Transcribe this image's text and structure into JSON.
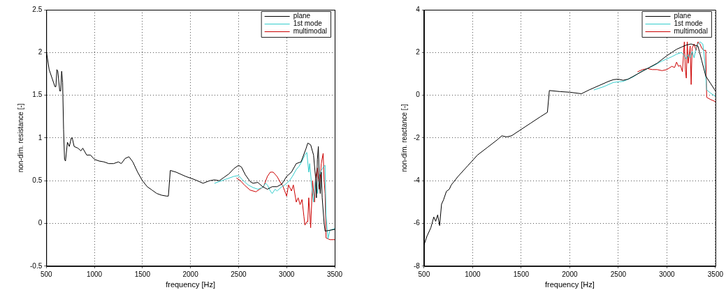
{
  "chart_data": [
    {
      "type": "line",
      "xlabel": "frequency [Hz]",
      "ylabel": "non-dim. resistance [-]",
      "xlim": [
        500,
        3500
      ],
      "ylim": [
        -0.5,
        2.5
      ],
      "xticks": [
        500,
        1000,
        1500,
        2000,
        2500,
        3000,
        3500
      ],
      "yticks": [
        -0.5,
        0,
        0.5,
        1,
        1.5,
        2,
        2.5
      ],
      "grid": true,
      "legend": "top right",
      "marker": "none",
      "series": [
        {
          "name": "plane",
          "color": "#000000",
          "x": [
            500,
            530,
            560,
            590,
            600,
            610,
            620,
            640,
            650,
            660,
            670,
            680,
            690,
            700,
            720,
            740,
            760,
            770,
            790,
            830,
            860,
            880,
            920,
            960,
            1000,
            1050,
            1100,
            1150,
            1200,
            1250,
            1280,
            1320,
            1360,
            1400,
            1450,
            1500,
            1550,
            1600,
            1650,
            1700,
            1750,
            1770,
            1790,
            1850,
            1950,
            2050,
            2130,
            2200,
            2250,
            2300,
            2350,
            2400,
            2450,
            2500,
            2530,
            2570,
            2620,
            2650,
            2700,
            2750,
            2800,
            2850,
            2900,
            2950,
            3000,
            3050,
            3100,
            3150,
            3200,
            3220,
            3250,
            3280,
            3300,
            3310,
            3320,
            3330,
            3340,
            3350,
            3360,
            3370,
            3390,
            3400,
            3450,
            3500
          ],
          "values": [
            2.02,
            1.8,
            1.7,
            1.6,
            1.6,
            1.8,
            1.78,
            1.55,
            1.55,
            1.78,
            1.65,
            1.1,
            0.75,
            0.73,
            0.95,
            0.9,
            1.0,
            1.0,
            0.9,
            0.88,
            0.85,
            0.88,
            0.8,
            0.8,
            0.75,
            0.73,
            0.72,
            0.7,
            0.7,
            0.72,
            0.7,
            0.76,
            0.78,
            0.72,
            0.6,
            0.5,
            0.43,
            0.39,
            0.35,
            0.33,
            0.32,
            0.32,
            0.62,
            0.6,
            0.55,
            0.51,
            0.47,
            0.5,
            0.51,
            0.5,
            0.54,
            0.58,
            0.64,
            0.68,
            0.66,
            0.57,
            0.49,
            0.47,
            0.48,
            0.43,
            0.4,
            0.43,
            0.43,
            0.46,
            0.55,
            0.6,
            0.7,
            0.72,
            0.87,
            0.94,
            0.92,
            0.8,
            0.55,
            0.3,
            0.75,
            0.9,
            0.5,
            0.35,
            0.6,
            0.3,
            0,
            -0.09,
            -0.08,
            -0.07
          ]
        },
        {
          "name": "1st mode",
          "color": "#33cccc",
          "x": [
            2250,
            2350,
            2450,
            2500,
            2550,
            2600,
            2650,
            2700,
            2750,
            2780,
            2800,
            2830,
            2850,
            2880,
            2900,
            2950,
            2980,
            3000,
            3030,
            3060,
            3100,
            3130,
            3160,
            3190,
            3210,
            3230,
            3240,
            3260,
            3280,
            3300,
            3320,
            3340,
            3360,
            3390,
            3400,
            3410,
            3430,
            3450,
            3500
          ],
          "values": [
            0.47,
            0.51,
            0.55,
            0.56,
            0.5,
            0.45,
            0.42,
            0.4,
            0.42,
            0.47,
            0.45,
            0.38,
            0.35,
            0.4,
            0.38,
            0.43,
            0.45,
            0.47,
            0.5,
            0.55,
            0.63,
            0.67,
            0.73,
            0.8,
            0.83,
            0.6,
            0.7,
            0.45,
            0.25,
            0.5,
            0.35,
            0.55,
            0.62,
            0.67,
            0.68,
            0.1,
            -0.18,
            -0.08,
            -0.06
          ]
        },
        {
          "name": "multimodal",
          "color": "#cc0000",
          "x": [
            2480,
            2520,
            2560,
            2620,
            2680,
            2720,
            2760,
            2800,
            2830,
            2860,
            2900,
            2940,
            2960,
            2980,
            3000,
            3020,
            3050,
            3070,
            3100,
            3120,
            3140,
            3160,
            3180,
            3190,
            3210,
            3220,
            3230,
            3250,
            3270,
            3290,
            3300,
            3320,
            3340,
            3360,
            3380,
            3390,
            3400,
            3410,
            3450,
            3500
          ],
          "values": [
            0.53,
            0.5,
            0.45,
            0.39,
            0.37,
            0.4,
            0.43,
            0.55,
            0.6,
            0.6,
            0.55,
            0.47,
            0.44,
            0.38,
            0.32,
            0.45,
            0.38,
            0.45,
            0.25,
            0.3,
            0.22,
            0.28,
            0.08,
            -0.02,
            0.02,
            0.02,
            0.3,
            -0.05,
            0.5,
            0.25,
            0.52,
            0.65,
            0.4,
            0.7,
            0.82,
            0.5,
            0.35,
            -0.17,
            -0.19,
            -0.19
          ]
        }
      ]
    },
    {
      "type": "line",
      "xlabel": "frequency [Hz]",
      "ylabel": "non-dim. reactance [-]",
      "xlim": [
        500,
        3500
      ],
      "ylim": [
        -8,
        4
      ],
      "xticks": [
        500,
        1000,
        1500,
        2000,
        2500,
        3000,
        3500
      ],
      "yticks": [
        -8,
        -6,
        -4,
        -2,
        0,
        2,
        4
      ],
      "grid": true,
      "legend": "top right",
      "marker": "none",
      "series": [
        {
          "name": "plane",
          "color": "#000000",
          "x": [
            500,
            530,
            570,
            600,
            620,
            640,
            660,
            680,
            700,
            730,
            760,
            780,
            850,
            950,
            1050,
            1150,
            1250,
            1300,
            1350,
            1400,
            1500,
            1600,
            1700,
            1770,
            1790,
            1900,
            2000,
            2120,
            2200,
            2300,
            2400,
            2450,
            2500,
            2550,
            2600,
            2700,
            2800,
            2900,
            3000,
            3050,
            3100,
            3150,
            3200,
            3250,
            3280,
            3320,
            3360,
            3400,
            3450,
            3500
          ],
          "values": [
            -7,
            -6.6,
            -6.2,
            -5.7,
            -5.9,
            -5.6,
            -6.1,
            -5.1,
            -4.9,
            -4.5,
            -4.4,
            -4.2,
            -3.8,
            -3.3,
            -2.8,
            -2.45,
            -2.1,
            -1.9,
            -1.95,
            -1.9,
            -1.6,
            -1.3,
            -1.0,
            -0.8,
            0.22,
            0.17,
            0.14,
            0.07,
            0.25,
            0.45,
            0.65,
            0.73,
            0.75,
            0.7,
            0.75,
            1.0,
            1.25,
            1.5,
            1.85,
            2.0,
            2.15,
            2.25,
            2.35,
            2.4,
            2.35,
            2.3,
            1.6,
            0.9,
            0.55,
            0.2
          ]
        },
        {
          "name": "1st mode",
          "color": "#33cccc",
          "x": [
            2250,
            2350,
            2450,
            2550,
            2650,
            2750,
            2850,
            2950,
            3050,
            3100,
            3150,
            3180,
            3200,
            3220,
            3240,
            3260,
            3280,
            3300,
            3320,
            3340,
            3370,
            3380,
            3390,
            3410,
            3450,
            3500
          ],
          "values": [
            0.25,
            0.4,
            0.6,
            0.65,
            0.85,
            1.15,
            1.35,
            1.6,
            1.8,
            1.92,
            2.0,
            1.85,
            1.7,
            1.9,
            1.75,
            2.05,
            1.75,
            2.2,
            2.4,
            2.5,
            2.4,
            2.0,
            1.6,
            0.25,
            0.1,
            -0.05
          ]
        },
        {
          "name": "multimodal",
          "color": "#cc0000",
          "x": [
            2700,
            2750,
            2800,
            2850,
            2900,
            2950,
            3000,
            3050,
            3080,
            3100,
            3120,
            3140,
            3160,
            3180,
            3190,
            3200,
            3210,
            3220,
            3240,
            3250,
            3260,
            3280,
            3300,
            3320,
            3340,
            3360,
            3380,
            3400,
            3410,
            3450,
            3500
          ],
          "values": [
            1.1,
            1.2,
            1.25,
            1.2,
            1.2,
            1.15,
            1.2,
            1.35,
            1.3,
            1.55,
            1.35,
            1.4,
            1.1,
            2.5,
            1.2,
            0.8,
            2.5,
            1.5,
            2.3,
            0.5,
            2.2,
            2.4,
            2.1,
            2.5,
            2.4,
            2.2,
            2.1,
            2.1,
            -0.1,
            -0.2,
            -0.3
          ]
        }
      ]
    }
  ]
}
